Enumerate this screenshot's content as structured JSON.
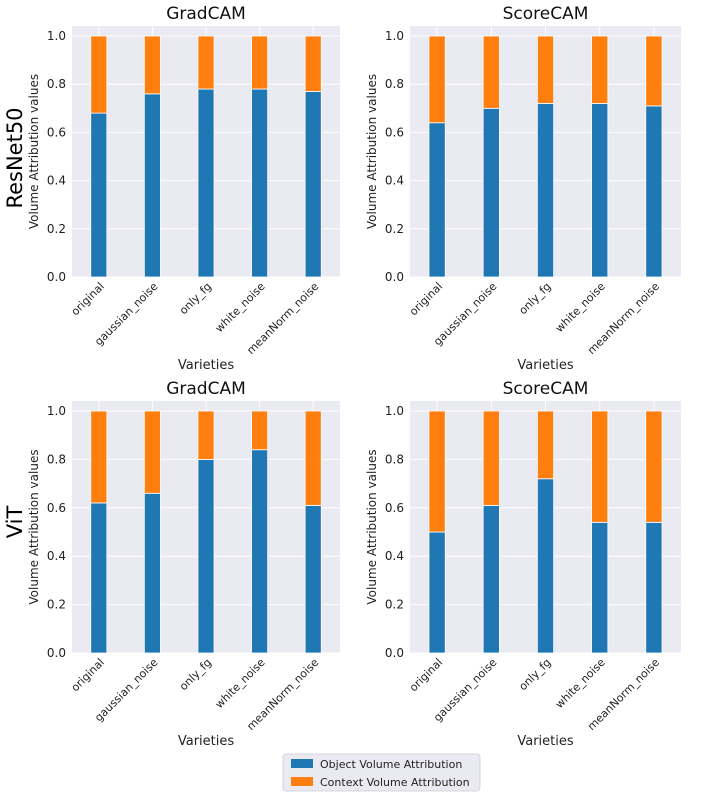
{
  "row_labels": [
    "ResNet50",
    "ViT"
  ],
  "legend": {
    "items": [
      {
        "label": "Object Volume Attribution",
        "color": "#1f77b4"
      },
      {
        "label": "Context Volume Attribution",
        "color": "#ff7f0e"
      }
    ]
  },
  "colors": {
    "object": "#1f77b4",
    "context": "#ff7f0e",
    "plot_bg": "#eaeaf2",
    "grid": "#ffffff"
  },
  "chart_data": [
    {
      "type": "bar",
      "stacked": true,
      "row": "ResNet50",
      "title": "GradCAM",
      "xlabel": "Varieties",
      "ylabel": "Volume Attribution values",
      "ylim": [
        0,
        1.0
      ],
      "yticks": [
        "0.0",
        "0.2",
        "0.4",
        "0.6",
        "0.8",
        "1.0"
      ],
      "categories": [
        "original",
        "gaussian_noise",
        "only_fg",
        "white_noise",
        "meanNorm_noise"
      ],
      "series": [
        {
          "name": "Object Volume Attribution",
          "values": [
            0.68,
            0.76,
            0.78,
            0.78,
            0.77
          ]
        },
        {
          "name": "Context Volume Attribution",
          "values": [
            0.32,
            0.24,
            0.22,
            0.22,
            0.23
          ]
        }
      ]
    },
    {
      "type": "bar",
      "stacked": true,
      "row": "ResNet50",
      "title": "ScoreCAM",
      "xlabel": "Varieties",
      "ylabel": "Volume Attribution values",
      "ylim": [
        0,
        1.0
      ],
      "yticks": [
        "0.0",
        "0.2",
        "0.4",
        "0.6",
        "0.8",
        "1.0"
      ],
      "categories": [
        "original",
        "gaussian_noise",
        "only_fg",
        "white_noise",
        "meanNorm_noise"
      ],
      "series": [
        {
          "name": "Object Volume Attribution",
          "values": [
            0.64,
            0.7,
            0.72,
            0.72,
            0.71
          ]
        },
        {
          "name": "Context Volume Attribution",
          "values": [
            0.36,
            0.3,
            0.28,
            0.28,
            0.29
          ]
        }
      ]
    },
    {
      "type": "bar",
      "stacked": true,
      "row": "ViT",
      "title": "GradCAM",
      "xlabel": "Varieties",
      "ylabel": "Volume Attribution values",
      "ylim": [
        0,
        1.0
      ],
      "yticks": [
        "0.0",
        "0.2",
        "0.4",
        "0.6",
        "0.8",
        "1.0"
      ],
      "categories": [
        "original",
        "gaussian_noise",
        "only_fg",
        "white_noise",
        "meanNorm_noise"
      ],
      "series": [
        {
          "name": "Object Volume Attribution",
          "values": [
            0.62,
            0.66,
            0.8,
            0.84,
            0.61
          ]
        },
        {
          "name": "Context Volume Attribution",
          "values": [
            0.38,
            0.34,
            0.2,
            0.16,
            0.39
          ]
        }
      ]
    },
    {
      "type": "bar",
      "stacked": true,
      "row": "ViT",
      "title": "ScoreCAM",
      "xlabel": "Varieties",
      "ylabel": "Volume Attribution values",
      "ylim": [
        0,
        1.0
      ],
      "yticks": [
        "0.0",
        "0.2",
        "0.4",
        "0.6",
        "0.8",
        "1.0"
      ],
      "categories": [
        "original",
        "gaussian_noise",
        "only_fg",
        "white_noise",
        "meanNorm_noise"
      ],
      "series": [
        {
          "name": "Object Volume Attribution",
          "values": [
            0.5,
            0.61,
            0.72,
            0.54,
            0.54
          ]
        },
        {
          "name": "Context Volume Attribution",
          "values": [
            0.5,
            0.39,
            0.28,
            0.46,
            0.46
          ]
        }
      ]
    }
  ]
}
